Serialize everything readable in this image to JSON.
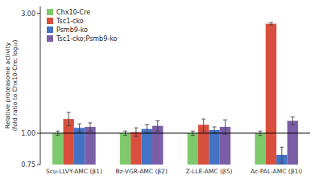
{
  "chart_data": {
    "type": "bar",
    "categories": [
      "Scu-LLVY-AMC (β1)",
      "Bz-VGR-AMC (β2)",
      "Z-LLE-AMC (β5)",
      "Ac-PAL-AMC (β1i)"
    ],
    "series": [
      {
        "name": "Chx10-Cre",
        "color": "#7dc96b",
        "values": [
          1.0,
          1.0,
          1.0,
          1.0
        ],
        "errors": [
          0.02,
          0.02,
          0.02,
          0.02
        ]
      },
      {
        "name": "Tsc1-cko",
        "color": "#d94f3d",
        "values": [
          1.14,
          1.01,
          1.08,
          2.73
        ],
        "errors": [
          0.07,
          0.04,
          0.06,
          0.03
        ]
      },
      {
        "name": "Psmb9-ko",
        "color": "#4472c4",
        "values": [
          1.05,
          1.04,
          1.03,
          0.82
        ],
        "errors": [
          0.04,
          0.04,
          0.03,
          0.06
        ]
      },
      {
        "name": "Tsc1-cko;Psmb9-ko",
        "color": "#7b5ea7",
        "values": [
          1.06,
          1.07,
          1.06,
          1.12
        ],
        "errors": [
          0.04,
          0.05,
          0.07,
          0.04
        ]
      }
    ],
    "ylabel": "Relative proteasome activity\n(fold ratio to Chx10-Cre; log₁₀)",
    "log": "y",
    "ylim": [
      0.75,
      3.2
    ],
    "yticks": [
      0.75,
      {
        "value": 1.0,
        "label": "1.00"
      },
      {
        "value": 3.0,
        "label": "3.00"
      }
    ],
    "baseline": 1.0,
    "grid": false,
    "legend": "upper left"
  }
}
